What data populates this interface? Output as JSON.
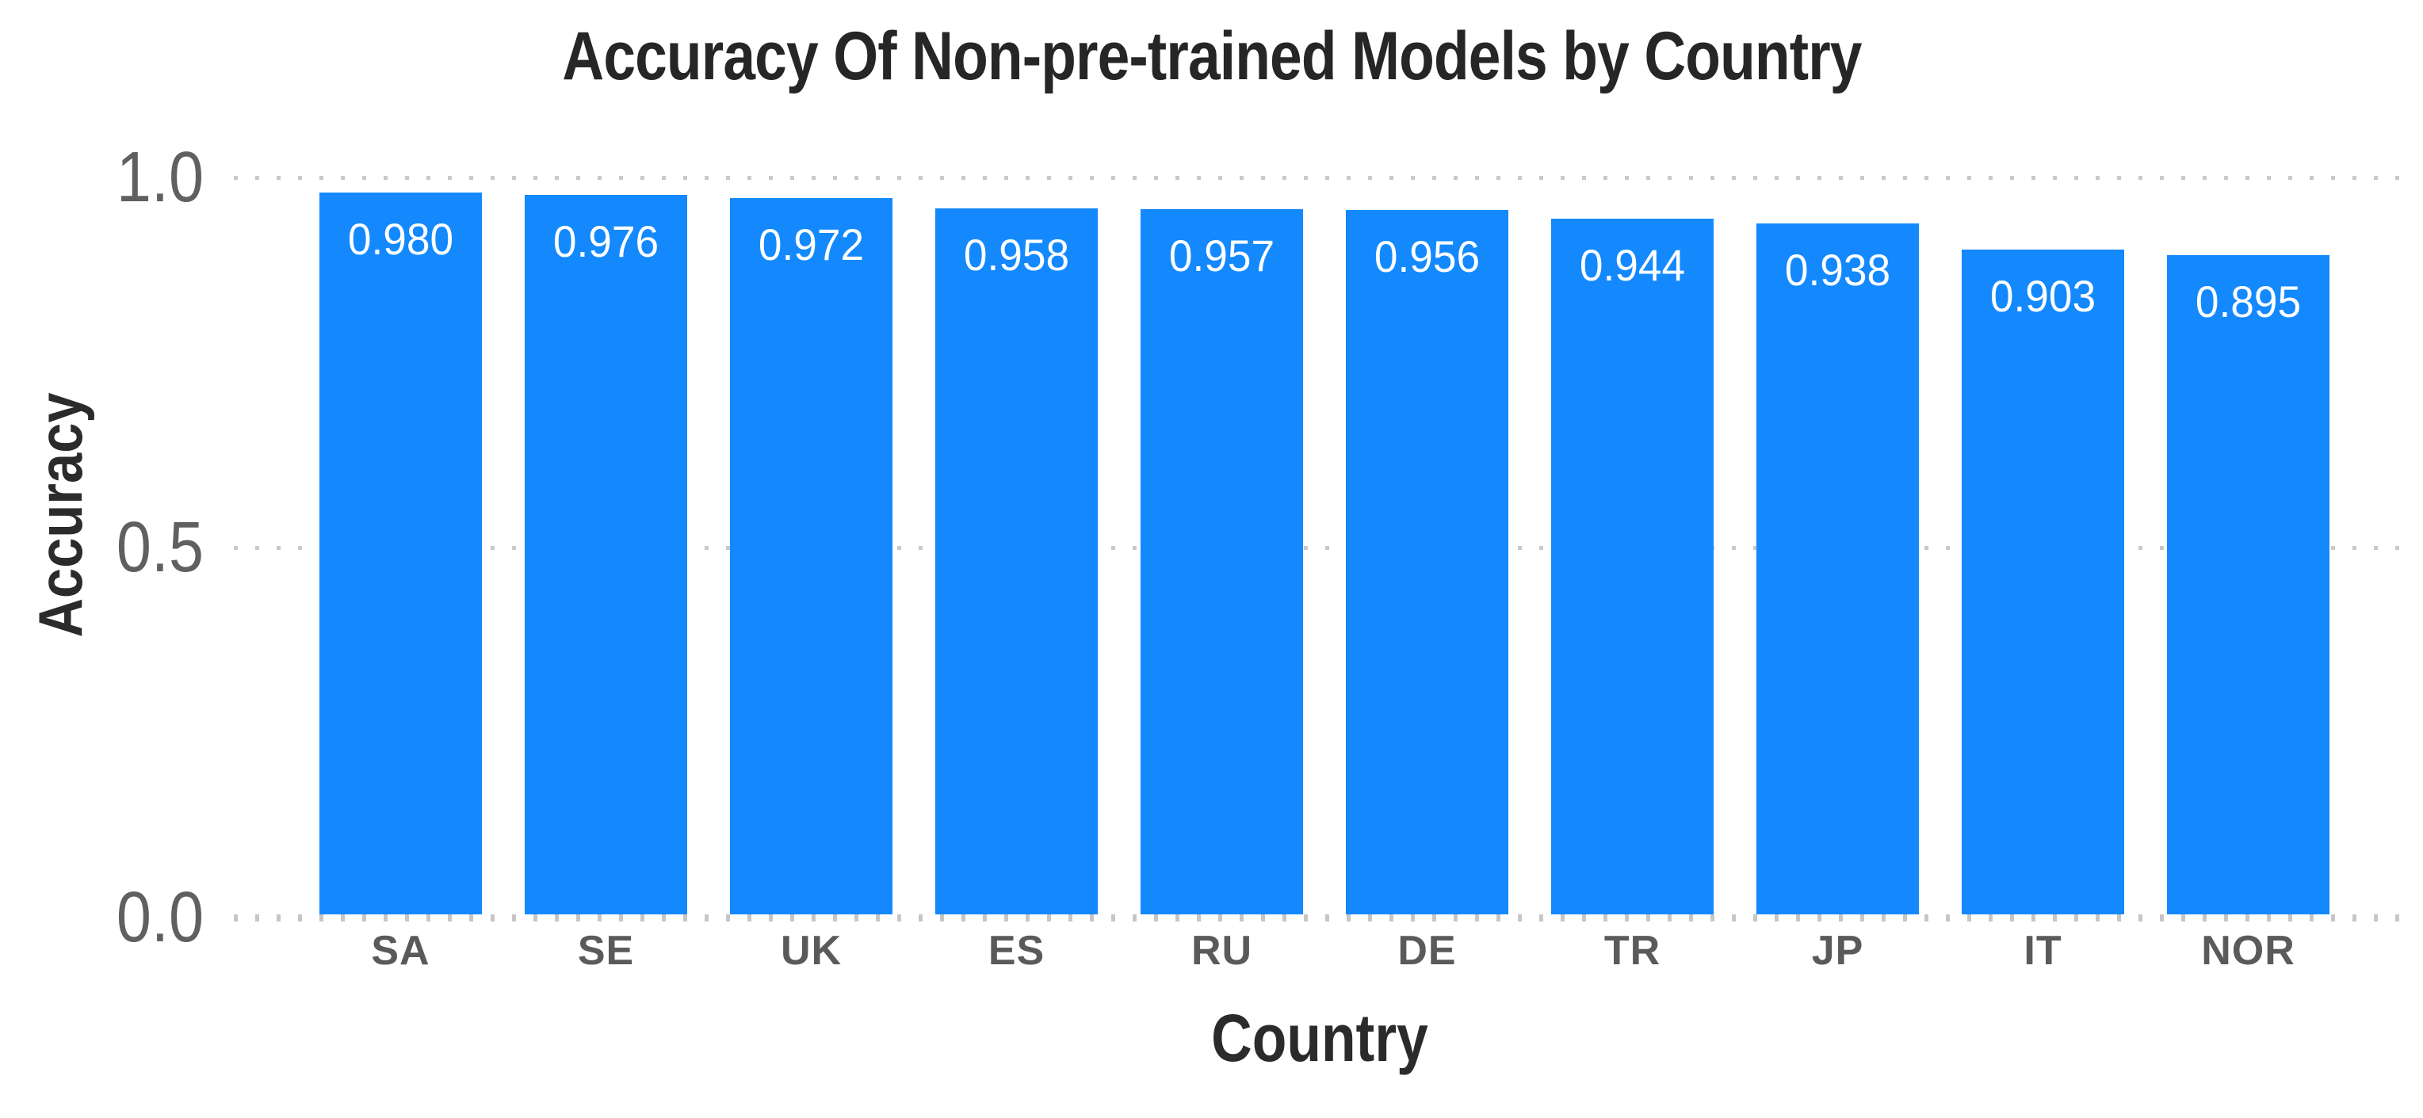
{
  "chart_data": {
    "type": "bar",
    "title": "Accuracy Of Non-pre-trained Models by Country",
    "xlabel": "Country",
    "ylabel": "Accuracy",
    "categories": [
      "SA",
      "SE",
      "UK",
      "ES",
      "RU",
      "DE",
      "TR",
      "JP",
      "IT",
      "NOR"
    ],
    "values": [
      0.98,
      0.976,
      0.972,
      0.958,
      0.957,
      0.956,
      0.944,
      0.938,
      0.903,
      0.895
    ],
    "bar_labels": [
      "0.980",
      "0.976",
      "0.972",
      "0.958",
      "0.957",
      "0.956",
      "0.944",
      "0.938",
      "0.903",
      "0.895"
    ],
    "yticks": [
      {
        "label": "0.0",
        "value": 0.0
      },
      {
        "label": "0.5",
        "value": 0.5
      },
      {
        "label": "1.0",
        "value": 1.0
      }
    ],
    "ylim": [
      0.0,
      1.08
    ],
    "grid": "horizontal-dotted",
    "legend": "none",
    "colors": {
      "bar": "#1389fd",
      "bar_label": "#ffffff",
      "title": "#262626",
      "axis_label": "#2b2b2b",
      "y_tick": "#606060",
      "x_tick": "#5a5a5a",
      "grid": "#c9c9c9",
      "background": "#ffffff"
    }
  }
}
